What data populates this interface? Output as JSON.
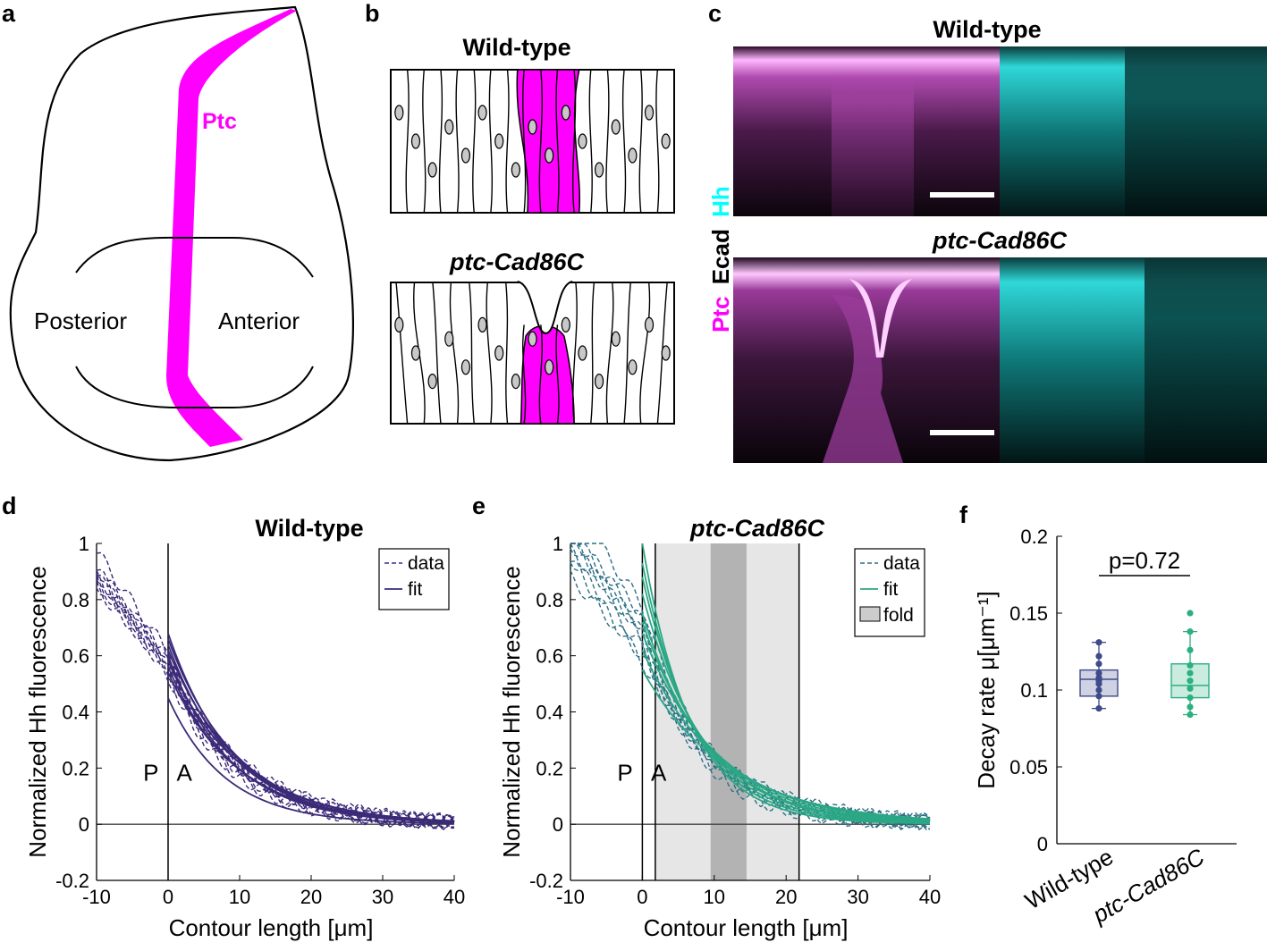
{
  "panels": {
    "a": {
      "label": "a",
      "ptc_label": "Ptc",
      "posterior_label": "Posterior",
      "anterior_label": "Anterior",
      "colors": {
        "ptc": "#ff00ff"
      }
    },
    "b": {
      "label": "b",
      "top_title": "Wild-type",
      "bottom_title": "ptc-Cad86C",
      "colors": {
        "ptc_domain": "#ff00ff",
        "nucleus": "#c8c8c8"
      }
    },
    "c": {
      "label": "c",
      "top_title": "Wild-type",
      "bottom_title": "ptc-Cad86C",
      "side_label": {
        "ptc": "Ptc",
        "ecad": "Ecad",
        "hh": "Hh"
      },
      "colors": {
        "ptc": "#ff00ff",
        "hh": "#00ffff",
        "ecad": "#000000"
      }
    },
    "d": {
      "label": "d",
      "p_marker": "P",
      "a_marker": "A",
      "legend": {
        "data": "data",
        "fit": "fit"
      },
      "colors": {
        "series": "#3b2a78"
      }
    },
    "e": {
      "label": "e",
      "p_marker": "P",
      "a_marker": "A",
      "legend": {
        "data": "data",
        "fit": "fit",
        "fold": "fold"
      },
      "colors": {
        "data": "#2e6f86",
        "fit": "#2aa784"
      }
    },
    "f": {
      "label": "f",
      "p_value": "p=0.72",
      "colors": {
        "wild_type": "#3e4a8a",
        "ptc_cad86c": "#2bb07f"
      }
    }
  },
  "chart_data": [
    {
      "id": "d",
      "type": "line",
      "title": "Wild-type",
      "xlabel": "Contour length [μm]",
      "ylabel": "Normalized Hh fluorescence",
      "xlim": [
        -10,
        40
      ],
      "ylim": [
        -0.2,
        1
      ],
      "xticks": [
        -10,
        0,
        10,
        20,
        30,
        40
      ],
      "yticks": [
        -0.2,
        0,
        0.2,
        0.4,
        0.6,
        0.8,
        1
      ],
      "xtick_labels": [
        "-10",
        "0",
        "10",
        "20",
        "30",
        "40"
      ],
      "ytick_labels": [
        "-0.2",
        "0",
        "0.2",
        "0.4",
        "0.6",
        "0.8",
        "1"
      ],
      "vlines": [
        0
      ],
      "fit_x_start": 0,
      "fit_amplitudes": [
        0.68,
        0.66,
        0.64,
        0.62,
        0.6,
        0.58,
        0.56,
        0.54,
        0.45
      ],
      "fit_decay_rates": [
        0.11,
        0.104,
        0.108,
        0.1,
        0.112,
        0.098,
        0.106,
        0.102,
        0.125
      ],
      "data_amplitudes": [
        0.6,
        0.57,
        0.55,
        0.58,
        0.54,
        0.61,
        0.56,
        0.59,
        0.53
      ],
      "data_decay_rates": [
        0.105,
        0.11,
        0.1,
        0.095,
        0.115,
        0.108,
        0.102,
        0.098,
        0.112
      ],
      "series": [
        {
          "name": "data",
          "style": "dashed"
        },
        {
          "name": "fit",
          "style": "solid"
        }
      ]
    },
    {
      "id": "e",
      "type": "line",
      "title": "ptc-Cad86C",
      "xlabel": "Contour length [μm]",
      "ylabel": "Normalized Hh fluorescence",
      "xlim": [
        -10,
        40
      ],
      "ylim": [
        -0.2,
        1
      ],
      "xticks": [
        -10,
        0,
        10,
        20,
        30,
        40
      ],
      "yticks": [
        -0.2,
        0,
        0.2,
        0.4,
        0.6,
        0.8,
        1
      ],
      "xtick_labels": [
        "-10",
        "0",
        "10",
        "20",
        "30",
        "40"
      ],
      "ytick_labels": [
        "-0.2",
        "0",
        "0.2",
        "0.4",
        "0.6",
        "0.8",
        "1"
      ],
      "vlines": [
        0,
        1.8,
        21.8
      ],
      "fold_light": [
        1.8,
        21.8
      ],
      "fold_dark": [
        9.5,
        14.5
      ],
      "fit_x_start": 0,
      "fit_amplitudes": [
        1.0,
        0.93,
        0.88,
        0.82,
        0.75,
        0.72,
        0.68,
        0.62,
        0.55
      ],
      "fit_decay_rates": [
        0.15,
        0.138,
        0.128,
        0.118,
        0.11,
        0.103,
        0.096,
        0.09,
        0.084
      ],
      "data_amplitudes": [
        0.75,
        0.72,
        0.66,
        0.7,
        0.63,
        0.78,
        0.6,
        0.68,
        0.58
      ],
      "data_decay_rates": [
        0.12,
        0.11,
        0.105,
        0.13,
        0.1,
        0.115,
        0.095,
        0.125,
        0.09
      ],
      "series": [
        {
          "name": "data",
          "style": "dashed"
        },
        {
          "name": "fit",
          "style": "solid"
        },
        {
          "name": "fold",
          "style": "patch"
        }
      ]
    },
    {
      "id": "f",
      "type": "box",
      "ylabel": "Decay rate μ[μm⁻¹]",
      "ylim": [
        0,
        0.2
      ],
      "yticks": [
        0,
        0.05,
        0.1,
        0.15,
        0.2
      ],
      "ytick_labels": [
        "0",
        "0.05",
        "0.1",
        "0.15",
        "0.2"
      ],
      "categories": [
        "Wild-type",
        "ptc-Cad86C"
      ],
      "boxes": [
        {
          "name": "Wild-type",
          "whisker_low": 0.088,
          "q1": 0.096,
          "median": 0.107,
          "q3": 0.113,
          "whisker_high": 0.131,
          "points": [
            0.131,
            0.122,
            0.117,
            0.111,
            0.108,
            0.106,
            0.104,
            0.1,
            0.096,
            0.088
          ]
        },
        {
          "name": "ptc-Cad86C",
          "whisker_low": 0.084,
          "q1": 0.095,
          "median": 0.103,
          "q3": 0.117,
          "whisker_high": 0.138,
          "points": [
            0.15,
            0.138,
            0.126,
            0.116,
            0.111,
            0.106,
            0.101,
            0.095,
            0.089,
            0.084
          ]
        }
      ]
    }
  ]
}
